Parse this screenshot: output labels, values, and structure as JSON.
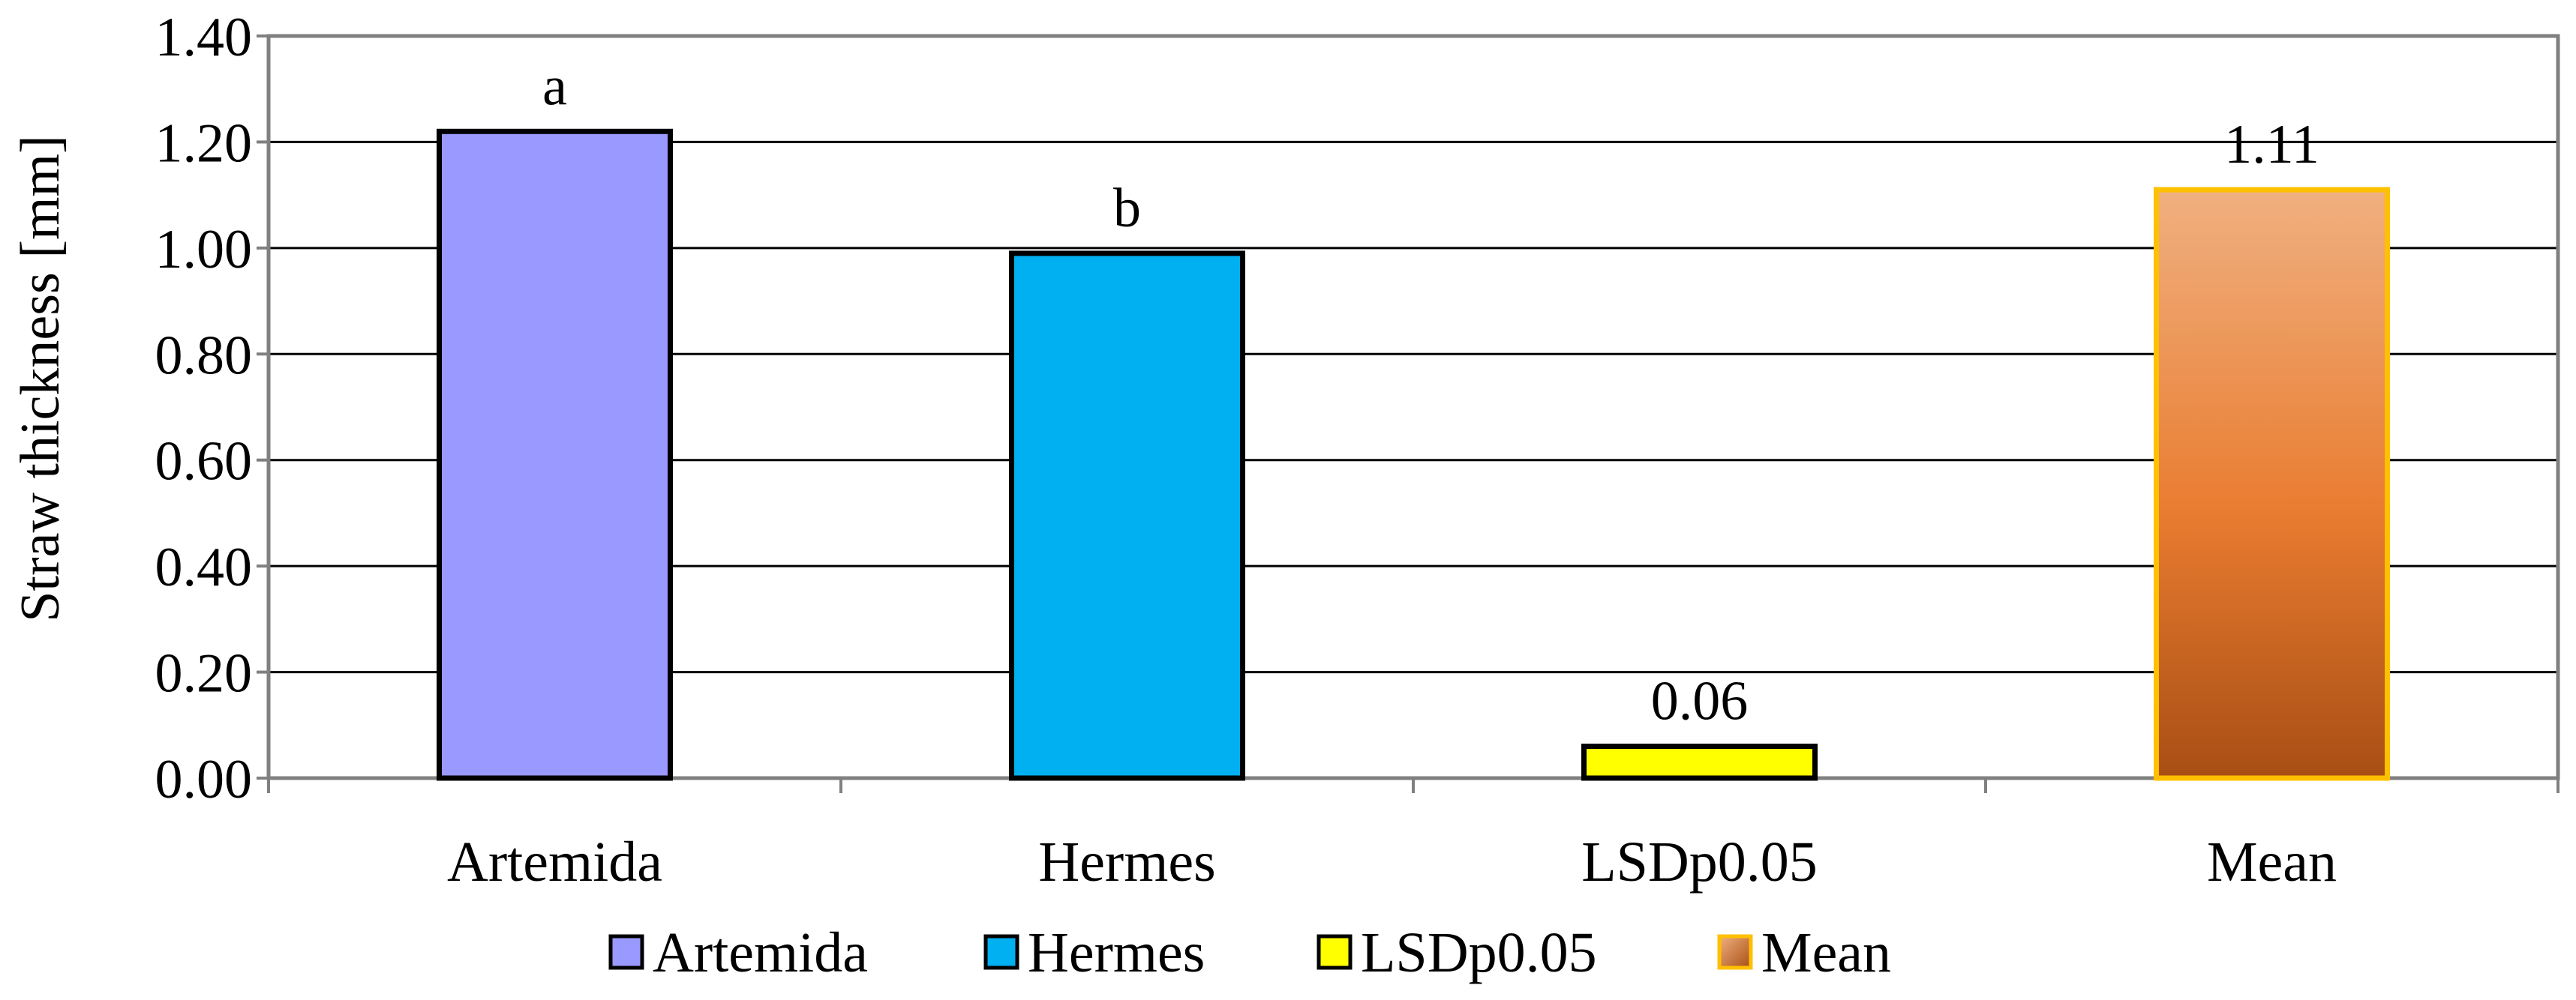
{
  "chart_data": {
    "type": "bar",
    "categories": [
      "Artemida",
      "Hermes",
      "LSDp0.05",
      "Mean"
    ],
    "values": [
      1.22,
      0.99,
      0.06,
      1.11
    ],
    "data_labels": [
      "a",
      "b",
      "0.06",
      "1.11"
    ],
    "colors": [
      "#9999ff",
      "#00b0f0",
      "#ffff00",
      "#e97c30"
    ],
    "border_colors": [
      "#000000",
      "#000000",
      "#000000",
      "#ffc000"
    ],
    "mean_gradient": [
      "#f0b080",
      "#e97c30",
      "#a84e14"
    ],
    "title": "",
    "xlabel": "",
    "ylabel": "Straw thickness [mm]",
    "ylim": [
      0,
      1.4
    ],
    "yticks": [
      "0.00",
      "0.20",
      "0.40",
      "0.60",
      "0.80",
      "1.00",
      "1.20",
      "1.40"
    ],
    "ytick_values": [
      0,
      0.2,
      0.4,
      0.6,
      0.8,
      1.0,
      1.2,
      1.4
    ],
    "grid": true,
    "legend_position": "bottom",
    "legend": [
      "Artemida",
      "Hermes",
      "LSDp0.05",
      "Mean"
    ]
  }
}
